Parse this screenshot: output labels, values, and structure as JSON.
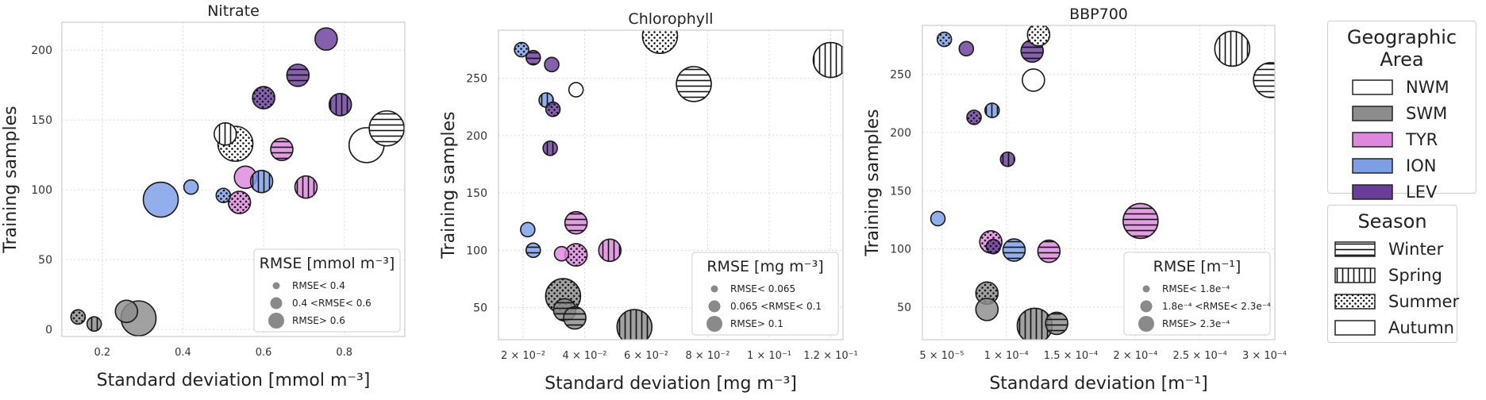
{
  "chart_data": [
    {
      "type": "scatter",
      "title": "Nitrate",
      "xlabel": "Standard deviation [mmol m⁻³]",
      "ylabel": "Training samples",
      "xlim": [
        0.1,
        0.95
      ],
      "ylim": [
        -5,
        220
      ],
      "xticks": [
        0.2,
        0.4,
        0.6,
        0.8
      ],
      "xtick_labels": [
        "0.2",
        "0.4",
        "0.6",
        "0.8"
      ],
      "yticks": [
        0,
        50,
        100,
        150,
        200
      ],
      "ytick_labels": [
        "0",
        "50",
        "100",
        "150",
        "200"
      ],
      "legend": {
        "title": "RMSE [mmol m⁻³]",
        "placement": "bottom-right",
        "entries": [
          "RMSE< 0.4",
          "0.4 <RMSE< 0.6",
          "RMSE> 0.6"
        ]
      },
      "points": [
        {
          "x": 0.14,
          "y": 9,
          "area": "SWM",
          "season": "Summer",
          "rmse_class": 0
        },
        {
          "x": 0.18,
          "y": 4,
          "area": "SWM",
          "season": "Spring",
          "rmse_class": 0
        },
        {
          "x": 0.26,
          "y": 13,
          "area": "SWM",
          "season": "Autumn",
          "rmse_class": 1
        },
        {
          "x": 0.29,
          "y": 8,
          "area": "SWM",
          "season": "Autumn",
          "rmse_class": 2
        },
        {
          "x": 0.345,
          "y": 93,
          "area": "ION",
          "season": "Autumn",
          "rmse_class": 2
        },
        {
          "x": 0.42,
          "y": 102,
          "area": "ION",
          "season": "Autumn",
          "rmse_class": 0
        },
        {
          "x": 0.5,
          "y": 96,
          "area": "ION",
          "season": "Summer",
          "rmse_class": 0
        },
        {
          "x": 0.505,
          "y": 140,
          "area": "NWM",
          "season": "Spring",
          "rmse_class": 1
        },
        {
          "x": 0.53,
          "y": 133,
          "area": "NWM",
          "season": "Summer",
          "rmse_class": 2
        },
        {
          "x": 0.54,
          "y": 91,
          "area": "TYR",
          "season": "Summer",
          "rmse_class": 1
        },
        {
          "x": 0.555,
          "y": 109,
          "area": "TYR",
          "season": "Autumn",
          "rmse_class": 1
        },
        {
          "x": 0.595,
          "y": 106,
          "area": "ION",
          "season": "Spring",
          "rmse_class": 1
        },
        {
          "x": 0.6,
          "y": 166,
          "area": "LEV",
          "season": "Summer",
          "rmse_class": 1
        },
        {
          "x": 0.645,
          "y": 129,
          "area": "TYR",
          "season": "Winter",
          "rmse_class": 1
        },
        {
          "x": 0.685,
          "y": 182,
          "area": "LEV",
          "season": "Winter",
          "rmse_class": 1
        },
        {
          "x": 0.705,
          "y": 102,
          "area": "TYR",
          "season": "Spring",
          "rmse_class": 1
        },
        {
          "x": 0.755,
          "y": 208,
          "area": "LEV",
          "season": "Autumn",
          "rmse_class": 1
        },
        {
          "x": 0.79,
          "y": 161,
          "area": "LEV",
          "season": "Spring",
          "rmse_class": 1
        },
        {
          "x": 0.855,
          "y": 132,
          "area": "NWM",
          "season": "Autumn",
          "rmse_class": 2
        },
        {
          "x": 0.905,
          "y": 144,
          "area": "NWM",
          "season": "Winter",
          "rmse_class": 2
        }
      ]
    },
    {
      "type": "scatter",
      "title": "Chlorophyll",
      "xlabel": "Standard deviation [mg m⁻³]",
      "ylabel": "Training samples",
      "xlim": [
        0.012,
        0.124
      ],
      "ylim": [
        22,
        292
      ],
      "xticks": [
        0.02,
        0.04,
        0.06,
        0.08,
        0.1,
        0.12
      ],
      "xtick_labels": [
        "2 × 10⁻²",
        "4 × 10⁻²",
        "6 × 10⁻²",
        "8 × 10⁻²",
        "1 × 10⁻¹",
        "1.2 × 10⁻¹"
      ],
      "yticks": [
        50,
        100,
        150,
        200,
        250
      ],
      "ytick_labels": [
        "50",
        "100",
        "150",
        "200",
        "250"
      ],
      "legend": {
        "title": "RMSE [mg m⁻³]",
        "placement": "bottom-right",
        "entries": [
          "RMSE< 0.065",
          "0.065 <RMSE< 0.1",
          "RMSE> 0.1"
        ]
      },
      "points": [
        {
          "x": 0.0195,
          "y": 275,
          "area": "ION",
          "season": "Summer",
          "rmse_class": 0
        },
        {
          "x": 0.0215,
          "y": 118,
          "area": "ION",
          "season": "Autumn",
          "rmse_class": 0
        },
        {
          "x": 0.0233,
          "y": 268,
          "area": "LEV",
          "season": "Winter",
          "rmse_class": 0
        },
        {
          "x": 0.0233,
          "y": 100,
          "area": "ION",
          "season": "Winter",
          "rmse_class": 0
        },
        {
          "x": 0.0275,
          "y": 231,
          "area": "ION",
          "season": "Spring",
          "rmse_class": 0
        },
        {
          "x": 0.0288,
          "y": 189,
          "area": "LEV",
          "season": "Spring",
          "rmse_class": 0
        },
        {
          "x": 0.0293,
          "y": 262,
          "area": "LEV",
          "season": "Autumn",
          "rmse_class": 0
        },
        {
          "x": 0.0297,
          "y": 223,
          "area": "LEV",
          "season": "Summer",
          "rmse_class": 0
        },
        {
          "x": 0.0325,
          "y": 97,
          "area": "TYR",
          "season": "Autumn",
          "rmse_class": 0
        },
        {
          "x": 0.033,
          "y": 60,
          "area": "SWM",
          "season": "Summer",
          "rmse_class": 2
        },
        {
          "x": 0.0335,
          "y": 48,
          "area": "SWM",
          "season": "Winter",
          "rmse_class": 1
        },
        {
          "x": 0.0368,
          "y": 41,
          "area": "SWM",
          "season": "Winter",
          "rmse_class": 1
        },
        {
          "x": 0.0372,
          "y": 240,
          "area": "NWM",
          "season": "Autumn",
          "rmse_class": 0
        },
        {
          "x": 0.0372,
          "y": 124,
          "area": "TYR",
          "season": "Winter",
          "rmse_class": 1
        },
        {
          "x": 0.0372,
          "y": 96,
          "area": "TYR",
          "season": "Summer",
          "rmse_class": 1
        },
        {
          "x": 0.0482,
          "y": 100,
          "area": "TYR",
          "season": "Spring",
          "rmse_class": 1
        },
        {
          "x": 0.0562,
          "y": 33,
          "area": "SWM",
          "season": "Spring",
          "rmse_class": 2
        },
        {
          "x": 0.0645,
          "y": 287,
          "area": "NWM",
          "season": "Summer",
          "rmse_class": 2
        },
        {
          "x": 0.0755,
          "y": 245,
          "area": "NWM",
          "season": "Winter",
          "rmse_class": 2
        },
        {
          "x": 0.12,
          "y": 266,
          "area": "NWM",
          "season": "Spring",
          "rmse_class": 2
        }
      ]
    },
    {
      "type": "scatter",
      "title": "BBP700",
      "xlabel": "Standard deviation [m⁻¹]",
      "ylabel": "Training samples",
      "xlim": [
        3.5e-05,
        0.000308
      ],
      "ylim": [
        22,
        292
      ],
      "xticks": [
        5e-05,
        0.0001,
        0.00015,
        0.0002,
        0.00025,
        0.0003
      ],
      "xtick_labels": [
        "5 × 10⁻⁵",
        "1 × 10⁻⁴",
        "1.5 × 10⁻⁴",
        "2 × 10⁻⁴",
        "2.5 × 10⁻⁴",
        "3 × 10⁻⁴"
      ],
      "yticks": [
        50,
        100,
        150,
        200,
        250
      ],
      "ytick_labels": [
        "50",
        "100",
        "150",
        "200",
        "250"
      ],
      "legend": {
        "title": "RMSE [m⁻¹]",
        "placement": "bottom-right",
        "entries": [
          "RMSE< 1.8e⁻⁴",
          "1.8e⁻⁴ <RMSE< 2.3e⁻⁴",
          "RMSE> 2.3e⁻⁴"
        ]
      },
      "points": [
        {
          "x": 4.7e-05,
          "y": 126,
          "area": "ION",
          "season": "Autumn",
          "rmse_class": 0
        },
        {
          "x": 5.2e-05,
          "y": 280,
          "area": "ION",
          "season": "Summer",
          "rmse_class": 0
        },
        {
          "x": 6.9e-05,
          "y": 272,
          "area": "LEV",
          "season": "Autumn",
          "rmse_class": 0
        },
        {
          "x": 7.5e-05,
          "y": 213,
          "area": "LEV",
          "season": "Summer",
          "rmse_class": 0
        },
        {
          "x": 8.5e-05,
          "y": 62,
          "area": "SWM",
          "season": "Summer",
          "rmse_class": 1
        },
        {
          "x": 8.5e-05,
          "y": 48,
          "area": "SWM",
          "season": "Autumn",
          "rmse_class": 1
        },
        {
          "x": 8.8e-05,
          "y": 106,
          "area": "TYR",
          "season": "Summer",
          "rmse_class": 1
        },
        {
          "x": 8.9e-05,
          "y": 219,
          "area": "ION",
          "season": "Spring",
          "rmse_class": 0
        },
        {
          "x": 9e-05,
          "y": 102,
          "area": "LEV",
          "season": "Summer",
          "rmse_class": 0
        },
        {
          "x": 0.000101,
          "y": 177,
          "area": "LEV",
          "season": "Spring",
          "rmse_class": 0
        },
        {
          "x": 0.000106,
          "y": 99,
          "area": "ION",
          "season": "Winter",
          "rmse_class": 1
        },
        {
          "x": 0.00012,
          "y": 270,
          "area": "LEV",
          "season": "Winter",
          "rmse_class": 1
        },
        {
          "x": 0.000121,
          "y": 245,
          "area": "NWM",
          "season": "Autumn",
          "rmse_class": 1
        },
        {
          "x": 0.000122,
          "y": 34,
          "area": "SWM",
          "season": "Spring",
          "rmse_class": 2
        },
        {
          "x": 0.000125,
          "y": 284,
          "area": "NWM",
          "season": "Summer",
          "rmse_class": 1
        },
        {
          "x": 0.000133,
          "y": 98,
          "area": "TYR",
          "season": "Winter",
          "rmse_class": 1
        },
        {
          "x": 0.000139,
          "y": 36,
          "area": "SWM",
          "season": "Winter",
          "rmse_class": 1
        },
        {
          "x": 0.000204,
          "y": 124,
          "area": "TYR",
          "season": "Winter",
          "rmse_class": 2
        },
        {
          "x": 0.000275,
          "y": 272,
          "area": "NWM",
          "season": "Spring",
          "rmse_class": 2
        },
        {
          "x": 0.000305,
          "y": 245,
          "area": "NWM",
          "season": "Winter",
          "rmse_class": 2
        }
      ]
    }
  ],
  "area_legend": {
    "title": "Geographic Area",
    "items": [
      {
        "label": "NWM",
        "color": "#ffffff"
      },
      {
        "label": "SWM",
        "color": "#8c8c8c"
      },
      {
        "label": "TYR",
        "color": "#dd88dd"
      },
      {
        "label": "ION",
        "color": "#7b9ee6"
      },
      {
        "label": "LEV",
        "color": "#6a3d9a"
      }
    ]
  },
  "season_legend": {
    "title": "Season",
    "items": [
      {
        "label": "Winter",
        "hatch": "horizontal"
      },
      {
        "label": "Spring",
        "hatch": "vertical"
      },
      {
        "label": "Summer",
        "hatch": "dots"
      },
      {
        "label": "Autumn",
        "hatch": "none"
      }
    ]
  },
  "colors": {
    "NWM": "#ffffff",
    "SWM": "#8c8c8c",
    "TYR": "#dd88dd",
    "ION": "#7b9ee6",
    "LEV": "#6a3d9a",
    "grid": "#d9d9d9",
    "frame": "#cccccc"
  }
}
